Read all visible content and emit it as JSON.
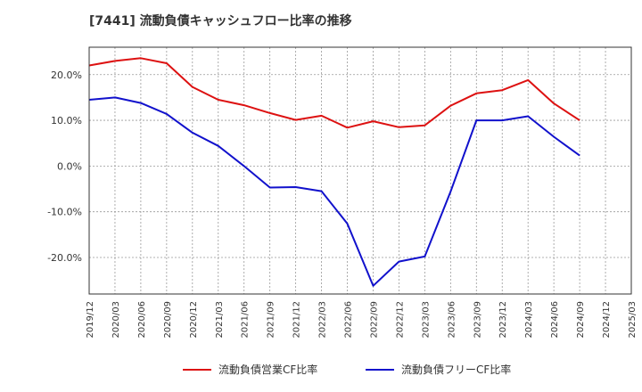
{
  "chart_data": {
    "type": "line",
    "title": "[7441]  流動負債キャッシュフロー比率の推移",
    "xlabel": "",
    "ylabel": "",
    "ylim": [
      -28,
      26
    ],
    "yticks": [
      -20,
      -10,
      0,
      10,
      20
    ],
    "ytick_labels": [
      "-20.0%",
      "-10.0%",
      "0.0%",
      "10.0%",
      "20.0%"
    ],
    "categories": [
      "2019/12",
      "2020/03",
      "2020/06",
      "2020/09",
      "2020/12",
      "2021/03",
      "2021/06",
      "2021/09",
      "2021/12",
      "2022/03",
      "2022/06",
      "2022/09",
      "2022/12",
      "2023/03",
      "2023/06",
      "2023/09",
      "2023/12",
      "2024/03",
      "2024/06",
      "2024/09",
      "2024/12",
      "2025/03"
    ],
    "grid": true,
    "legend_position": "bottom",
    "series": [
      {
        "name": "流動負債営業CF比率",
        "color": "#dd1111",
        "values": [
          22.0,
          23.0,
          23.6,
          22.5,
          17.3,
          14.5,
          13.3,
          11.6,
          10.1,
          11.0,
          8.4,
          9.8,
          8.5,
          8.9,
          13.2,
          15.9,
          16.6,
          18.8,
          13.7,
          10.0,
          null,
          null
        ]
      },
      {
        "name": "流動負債フリーCF比率",
        "color": "#1111cc",
        "values": [
          14.5,
          15.0,
          13.8,
          11.4,
          7.3,
          4.4,
          0.0,
          -4.7,
          -4.6,
          -5.5,
          -12.6,
          -26.2,
          -20.9,
          -19.8,
          -5.6,
          10.0,
          10.0,
          10.9,
          6.4,
          2.3,
          null,
          null
        ]
      }
    ]
  }
}
